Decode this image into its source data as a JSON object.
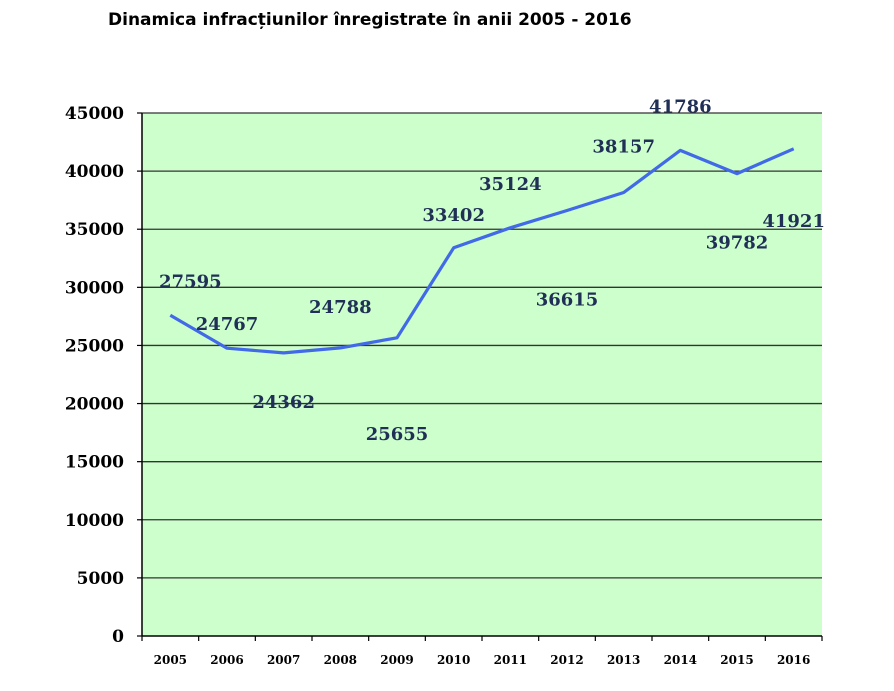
{
  "chart_data": {
    "type": "line",
    "title": "Dinamica infracțiunilor înregistrate în anii 2005 - 2016",
    "xlabel": "",
    "ylabel": "",
    "categories": [
      "2005",
      "2006",
      "2007",
      "2008",
      "2009",
      "2010",
      "2011",
      "2012",
      "2013",
      "2014",
      "2015",
      "2016"
    ],
    "series": [
      {
        "values": [
          27595,
          24767,
          24362,
          24788,
          25655,
          33402,
          35124,
          36615,
          38157,
          41786,
          39782,
          41921
        ]
      }
    ],
    "data_labels": [
      "27595",
      "24767",
      "24362",
      "24788",
      "25655",
      "33402",
      "35124",
      "36615",
      "38157",
      "41786",
      "39782",
      "41921"
    ],
    "ylim": [
      0,
      45000
    ],
    "yticks": [
      0,
      5000,
      10000,
      15000,
      20000,
      25000,
      30000,
      35000,
      40000,
      45000
    ],
    "grid": true,
    "legend": "none",
    "colors": {
      "line": "#4169e8",
      "plot_bg": "#ccffcc",
      "grid": "#333333",
      "label": "#1f2f55"
    }
  }
}
